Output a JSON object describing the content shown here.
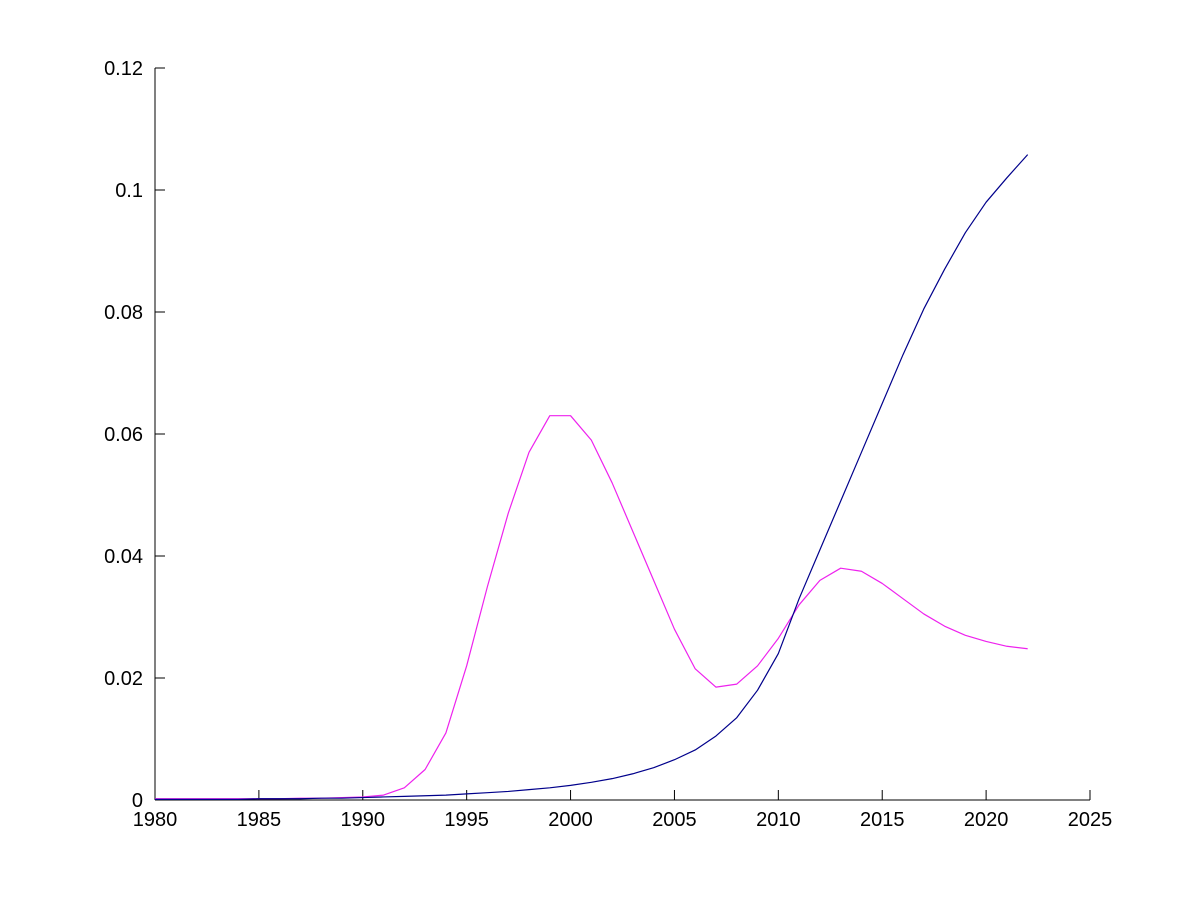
{
  "figure": {
    "background": "#ffffff",
    "title": ""
  },
  "chart_data": {
    "type": "line",
    "title": "",
    "xlabel": "",
    "ylabel": "",
    "grid": false,
    "legend": null,
    "xlim": [
      1980,
      2025
    ],
    "ylim": [
      0,
      0.12
    ],
    "x_ticks": [
      1980,
      1985,
      1990,
      1995,
      2000,
      2005,
      2010,
      2015,
      2020,
      2025
    ],
    "x_tick_labels": [
      "1980",
      "1985",
      "1990",
      "1995",
      "2000",
      "2005",
      "2010",
      "2015",
      "2020",
      "2025"
    ],
    "y_ticks": [
      0,
      0.02,
      0.04,
      0.06,
      0.08,
      0.1,
      0.12
    ],
    "y_tick_labels": [
      "0",
      "0.02",
      "0.04",
      "0.06",
      "0.08",
      "0.1",
      "0.12"
    ],
    "x": [
      1980,
      1981,
      1982,
      1983,
      1984,
      1985,
      1986,
      1987,
      1988,
      1989,
      1990,
      1991,
      1992,
      1993,
      1994,
      1995,
      1996,
      1997,
      1998,
      1999,
      2000,
      2001,
      2002,
      2003,
      2004,
      2005,
      2006,
      2007,
      2008,
      2009,
      2010,
      2011,
      2012,
      2013,
      2014,
      2015,
      2016,
      2017,
      2018,
      2019,
      2020,
      2021,
      2022
    ],
    "series": [
      {
        "name": "magenta-series",
        "color": "#EE22EE",
        "values": [
          0.0002,
          0.0002,
          0.0002,
          0.0002,
          0.0002,
          0.0002,
          0.0002,
          0.0003,
          0.0003,
          0.0004,
          0.0005,
          0.0008,
          0.002,
          0.005,
          0.011,
          0.022,
          0.035,
          0.047,
          0.057,
          0.063,
          0.063,
          0.059,
          0.052,
          0.044,
          0.036,
          0.028,
          0.0215,
          0.0185,
          0.019,
          0.022,
          0.0265,
          0.032,
          0.036,
          0.038,
          0.0375,
          0.0355,
          0.033,
          0.0305,
          0.0285,
          0.027,
          0.026,
          0.0252,
          0.0248
        ]
      },
      {
        "name": "blue-series",
        "color": "#00008B",
        "values": [
          0.0001,
          0.0001,
          0.0001,
          0.0001,
          0.0001,
          0.0002,
          0.0002,
          0.0002,
          0.0003,
          0.0003,
          0.0004,
          0.0005,
          0.0006,
          0.0007,
          0.0008,
          0.001,
          0.0012,
          0.0014,
          0.0017,
          0.002,
          0.0024,
          0.0029,
          0.0035,
          0.0043,
          0.0053,
          0.0066,
          0.0082,
          0.0105,
          0.0135,
          0.018,
          0.024,
          0.033,
          0.041,
          0.049,
          0.057,
          0.065,
          0.073,
          0.0805,
          0.087,
          0.093,
          0.098,
          0.102,
          0.1058
        ]
      }
    ]
  }
}
